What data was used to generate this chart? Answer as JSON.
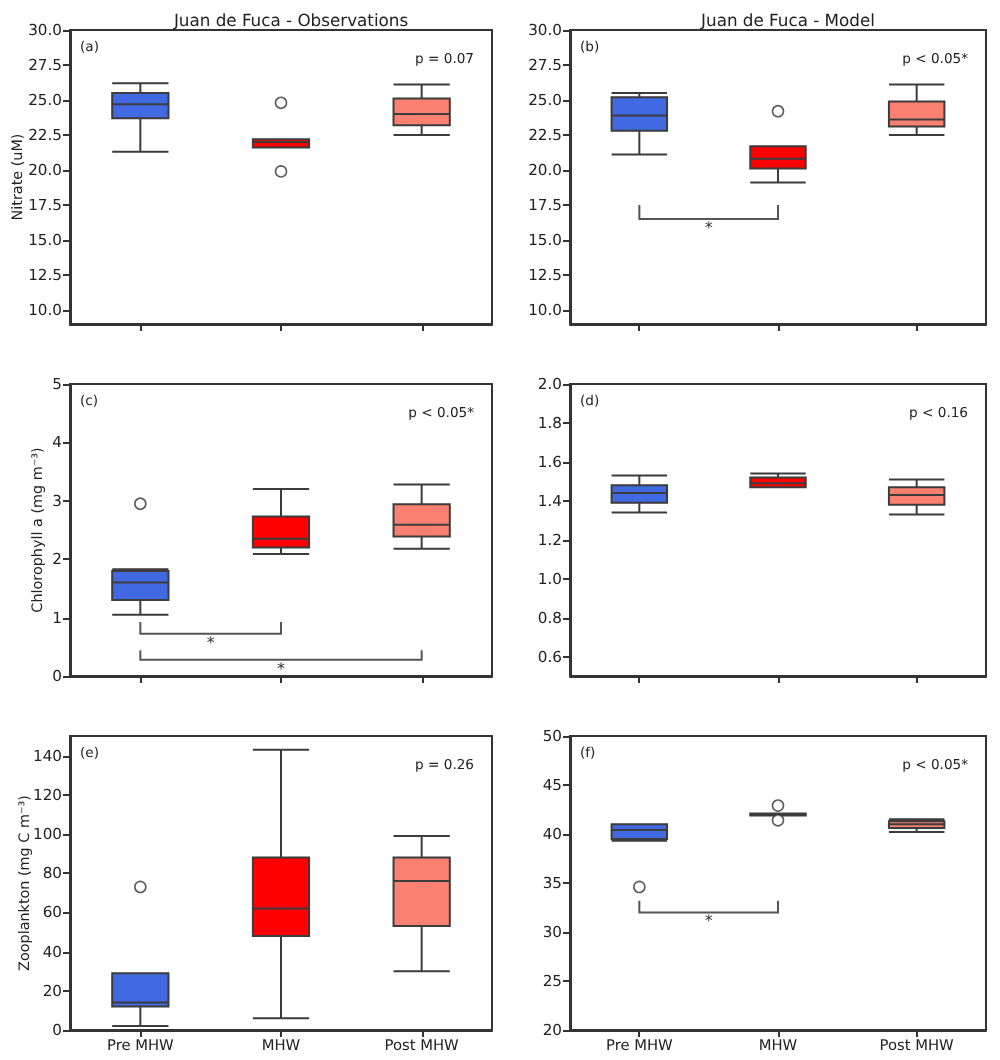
{
  "chart_data": [
    {
      "type": "box",
      "title": "Juan de Fuca - Observations",
      "ylabel": "Nitrate (uM)",
      "categories": [
        null,
        null,
        null
      ],
      "colors": [
        "#4169e1",
        "#ff0000",
        "#fa8072"
      ],
      "boxes": [
        {
          "low": 21.3,
          "q1": 23.7,
          "median": 24.7,
          "q3": 25.5,
          "high": 26.2
        },
        {
          "low": 21.6,
          "q1": 21.6,
          "median": 22.0,
          "q3": 22.2,
          "high": 22.2,
          "outliers": [
            24.8,
            19.9
          ]
        },
        {
          "low": 22.5,
          "q1": 23.2,
          "median": 24.0,
          "q3": 25.1,
          "high": 26.1
        }
      ],
      "ylim": [
        9,
        30
      ],
      "yticks": [
        {
          "value": 10,
          "label": "10.0"
        },
        12.5,
        {
          "value": 15,
          "label": "15.0"
        },
        17.5,
        {
          "value": 20,
          "label": "20.0"
        },
        22.5,
        {
          "value": 25,
          "label": "25.0"
        },
        27.5,
        {
          "value": 30,
          "label": "30.0"
        }
      ],
      "tick_labels": "y",
      "annotations": [
        "(a)",
        "p = 0.07"
      ]
    },
    {
      "type": "box",
      "title": "Juan de Fuca - Model",
      "categories": [
        null,
        null,
        null
      ],
      "colors": [
        "#4169e1",
        "#ff0000",
        "#fa8072"
      ],
      "boxes": [
        {
          "low": 21.1,
          "q1": 22.8,
          "median": 23.9,
          "q3": 25.2,
          "high": 25.5
        },
        {
          "low": 19.1,
          "q1": 20.1,
          "median": 20.8,
          "q3": 21.7,
          "high": 21.7,
          "outliers": [
            24.2
          ]
        },
        {
          "low": 22.5,
          "q1": 23.1,
          "median": 23.6,
          "q3": 24.9,
          "high": 26.1
        }
      ],
      "ylim": [
        9,
        30
      ],
      "yticks": [
        {
          "value": 10,
          "label": "10.0"
        },
        12.5,
        {
          "value": 15,
          "label": "15.0"
        },
        17.5,
        {
          "value": 20,
          "label": "20.0"
        },
        22.5,
        {
          "value": 25,
          "label": "25.0"
        },
        27.5,
        {
          "value": 30,
          "label": "30.0"
        }
      ],
      "tick_labels": "y",
      "annotations": [
        "(b)",
        "p < 0.05*",
        "*"
      ]
    },
    {
      "type": "box",
      "ylabel": "Chlorophyll a (mg m⁻³)",
      "categories": [
        null,
        null,
        null
      ],
      "colors": [
        "#4169e1",
        "#ff0000",
        "#fa8072"
      ],
      "boxes": [
        {
          "low": 1.05,
          "q1": 1.3,
          "median": 1.6,
          "q3": 1.8,
          "high": 1.83,
          "outliers": [
            2.95
          ]
        },
        {
          "low": 2.09,
          "q1": 2.2,
          "median": 2.35,
          "q3": 2.73,
          "high": 3.2
        },
        {
          "low": 2.18,
          "q1": 2.39,
          "median": 2.59,
          "q3": 2.94,
          "high": 3.28
        }
      ],
      "ylim": [
        0,
        5
      ],
      "yticks": [
        0,
        1,
        2,
        3,
        4,
        5
      ],
      "tick_labels": "y",
      "annotations": [
        "(c)",
        "p < 0.05*",
        "*",
        "*"
      ]
    },
    {
      "type": "box",
      "categories": [
        null,
        null,
        null
      ],
      "colors": [
        "#4169e1",
        "#ff0000",
        "#fa8072"
      ],
      "boxes": [
        {
          "low": 1.34,
          "q1": 1.39,
          "median": 1.44,
          "q3": 1.48,
          "high": 1.53
        },
        {
          "low": 1.47,
          "q1": 1.47,
          "median": 1.49,
          "q3": 1.52,
          "high": 1.54
        },
        {
          "low": 1.33,
          "q1": 1.38,
          "median": 1.43,
          "q3": 1.47,
          "high": 1.51
        }
      ],
      "ylim": [
        0.5,
        2.0
      ],
      "yticks": [
        0.6,
        0.8,
        {
          "value": 1,
          "label": "1.0"
        },
        1.2,
        1.4,
        1.6,
        1.8,
        {
          "value": 2,
          "label": "2.0"
        }
      ],
      "tick_labels": "y",
      "annotations": [
        "(d)",
        "p < 0.16"
      ]
    },
    {
      "type": "box",
      "ylabel": "Zooplankton (mg C m⁻³)",
      "categories": [
        "Pre MHW",
        "MHW",
        "Post MHW"
      ],
      "colors": [
        "#4169e1",
        "#ff0000",
        "#fa8072"
      ],
      "boxes": [
        {
          "low": 2,
          "q1": 12,
          "median": 14,
          "q3": 29,
          "high": 29,
          "outliers": [
            73
          ]
        },
        {
          "low": 6,
          "q1": 48,
          "median": 62,
          "q3": 88,
          "high": 143
        },
        {
          "low": 30,
          "q1": 53,
          "median": 76,
          "q3": 88,
          "high": 99
        }
      ],
      "ylim": [
        0,
        150
      ],
      "yticks": [
        0,
        20,
        40,
        60,
        80,
        100,
        120,
        140
      ],
      "annotations": [
        "(e)",
        "p = 0.26"
      ]
    },
    {
      "type": "box",
      "categories": [
        "Pre MHW",
        "MHW",
        "Post MHW"
      ],
      "colors": [
        "#4169e1",
        "#ff0000",
        "#fa8072"
      ],
      "boxes": [
        {
          "low": 39.3,
          "q1": 39.5,
          "median": 40.4,
          "q3": 41.0,
          "high": 41.0,
          "outliers": [
            34.6
          ]
        },
        {
          "low": 41.9,
          "q1": 41.9,
          "median": 42.0,
          "q3": 42.1,
          "high": 42.1,
          "outliers": [
            42.9,
            41.4
          ]
        },
        {
          "low": 40.2,
          "q1": 40.6,
          "median": 41.0,
          "q3": 41.3,
          "high": 41.5
        }
      ],
      "ylim": [
        20,
        50
      ],
      "yticks": [
        20,
        25,
        30,
        35,
        40,
        45,
        50
      ],
      "annotations": [
        "(f)",
        "p < 0.05*",
        "*"
      ]
    }
  ]
}
